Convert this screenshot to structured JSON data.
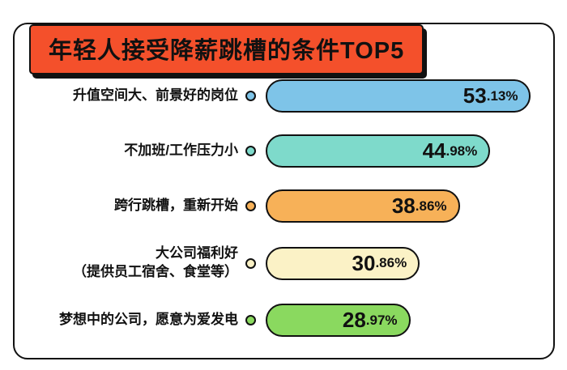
{
  "chart_data": {
    "type": "bar",
    "orientation": "horizontal",
    "title": "年轻人接受降薪跳槽的条件TOP5",
    "xlim": [
      0,
      55
    ],
    "unit": "%",
    "rows": [
      {
        "category": "升值空间大、前景好的岗位",
        "value": 53.13,
        "value_label": "53.13%",
        "value_int": "53",
        "value_frac": ".13%",
        "color": "#7ec4e8"
      },
      {
        "category": "不加班/工作压力小",
        "value": 44.98,
        "value_label": "44.98%",
        "value_int": "44",
        "value_frac": ".98%",
        "color": "#7edacb"
      },
      {
        "category": "跨行跳槽，重新开始",
        "value": 38.86,
        "value_label": "38.86%",
        "value_int": "38",
        "value_frac": ".86%",
        "color": "#f7b158"
      },
      {
        "category": "大公司福利好\n（提供员工宿舍、食堂等）",
        "value": 30.86,
        "value_label": "30.86%",
        "value_int": "30",
        "value_frac": ".86%",
        "color": "#fbf2c6"
      },
      {
        "category": "梦想中的公司，愿意为爱发电",
        "value": 28.97,
        "value_label": "28.97%",
        "value_int": "28",
        "value_frac": ".97%",
        "color": "#8ad95f"
      }
    ]
  }
}
